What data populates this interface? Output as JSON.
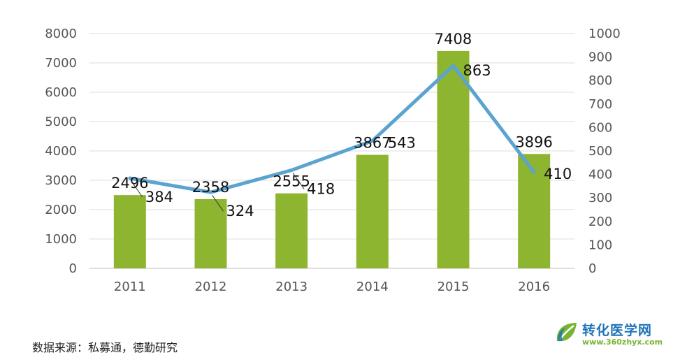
{
  "chart_data": {
    "type": "bar+line",
    "categories": [
      "2011",
      "2012",
      "2013",
      "2014",
      "2015",
      "2016"
    ],
    "series": [
      {
        "type": "bar",
        "axis": "left",
        "values": [
          2496,
          2358,
          2555,
          3867,
          7408,
          3896
        ],
        "labels": [
          "2496",
          "2358",
          "2555",
          "3867",
          "7408",
          "3896"
        ],
        "color": "#8db52f"
      },
      {
        "type": "line",
        "axis": "right",
        "values": [
          384,
          324,
          418,
          543,
          863,
          410
        ],
        "labels": [
          "384",
          "324",
          "418",
          "543",
          "863",
          "410"
        ],
        "color": "#5ba3d0"
      }
    ],
    "y_left": {
      "range": [
        0,
        8000
      ],
      "ticks": [
        "0",
        "1000",
        "2000",
        "3000",
        "4000",
        "5000",
        "6000",
        "7000",
        "8000"
      ]
    },
    "y_right": {
      "range": [
        0,
        1000
      ],
      "ticks": [
        "0",
        "100",
        "200",
        "300",
        "400",
        "500",
        "600",
        "700",
        "800",
        "900",
        "1000"
      ]
    },
    "grid": true,
    "legend": "none"
  },
  "source_text": "数据来源：私募通，德勤研究",
  "watermark": {
    "name": "转化医学网",
    "url": "www.360zhyx.com"
  }
}
